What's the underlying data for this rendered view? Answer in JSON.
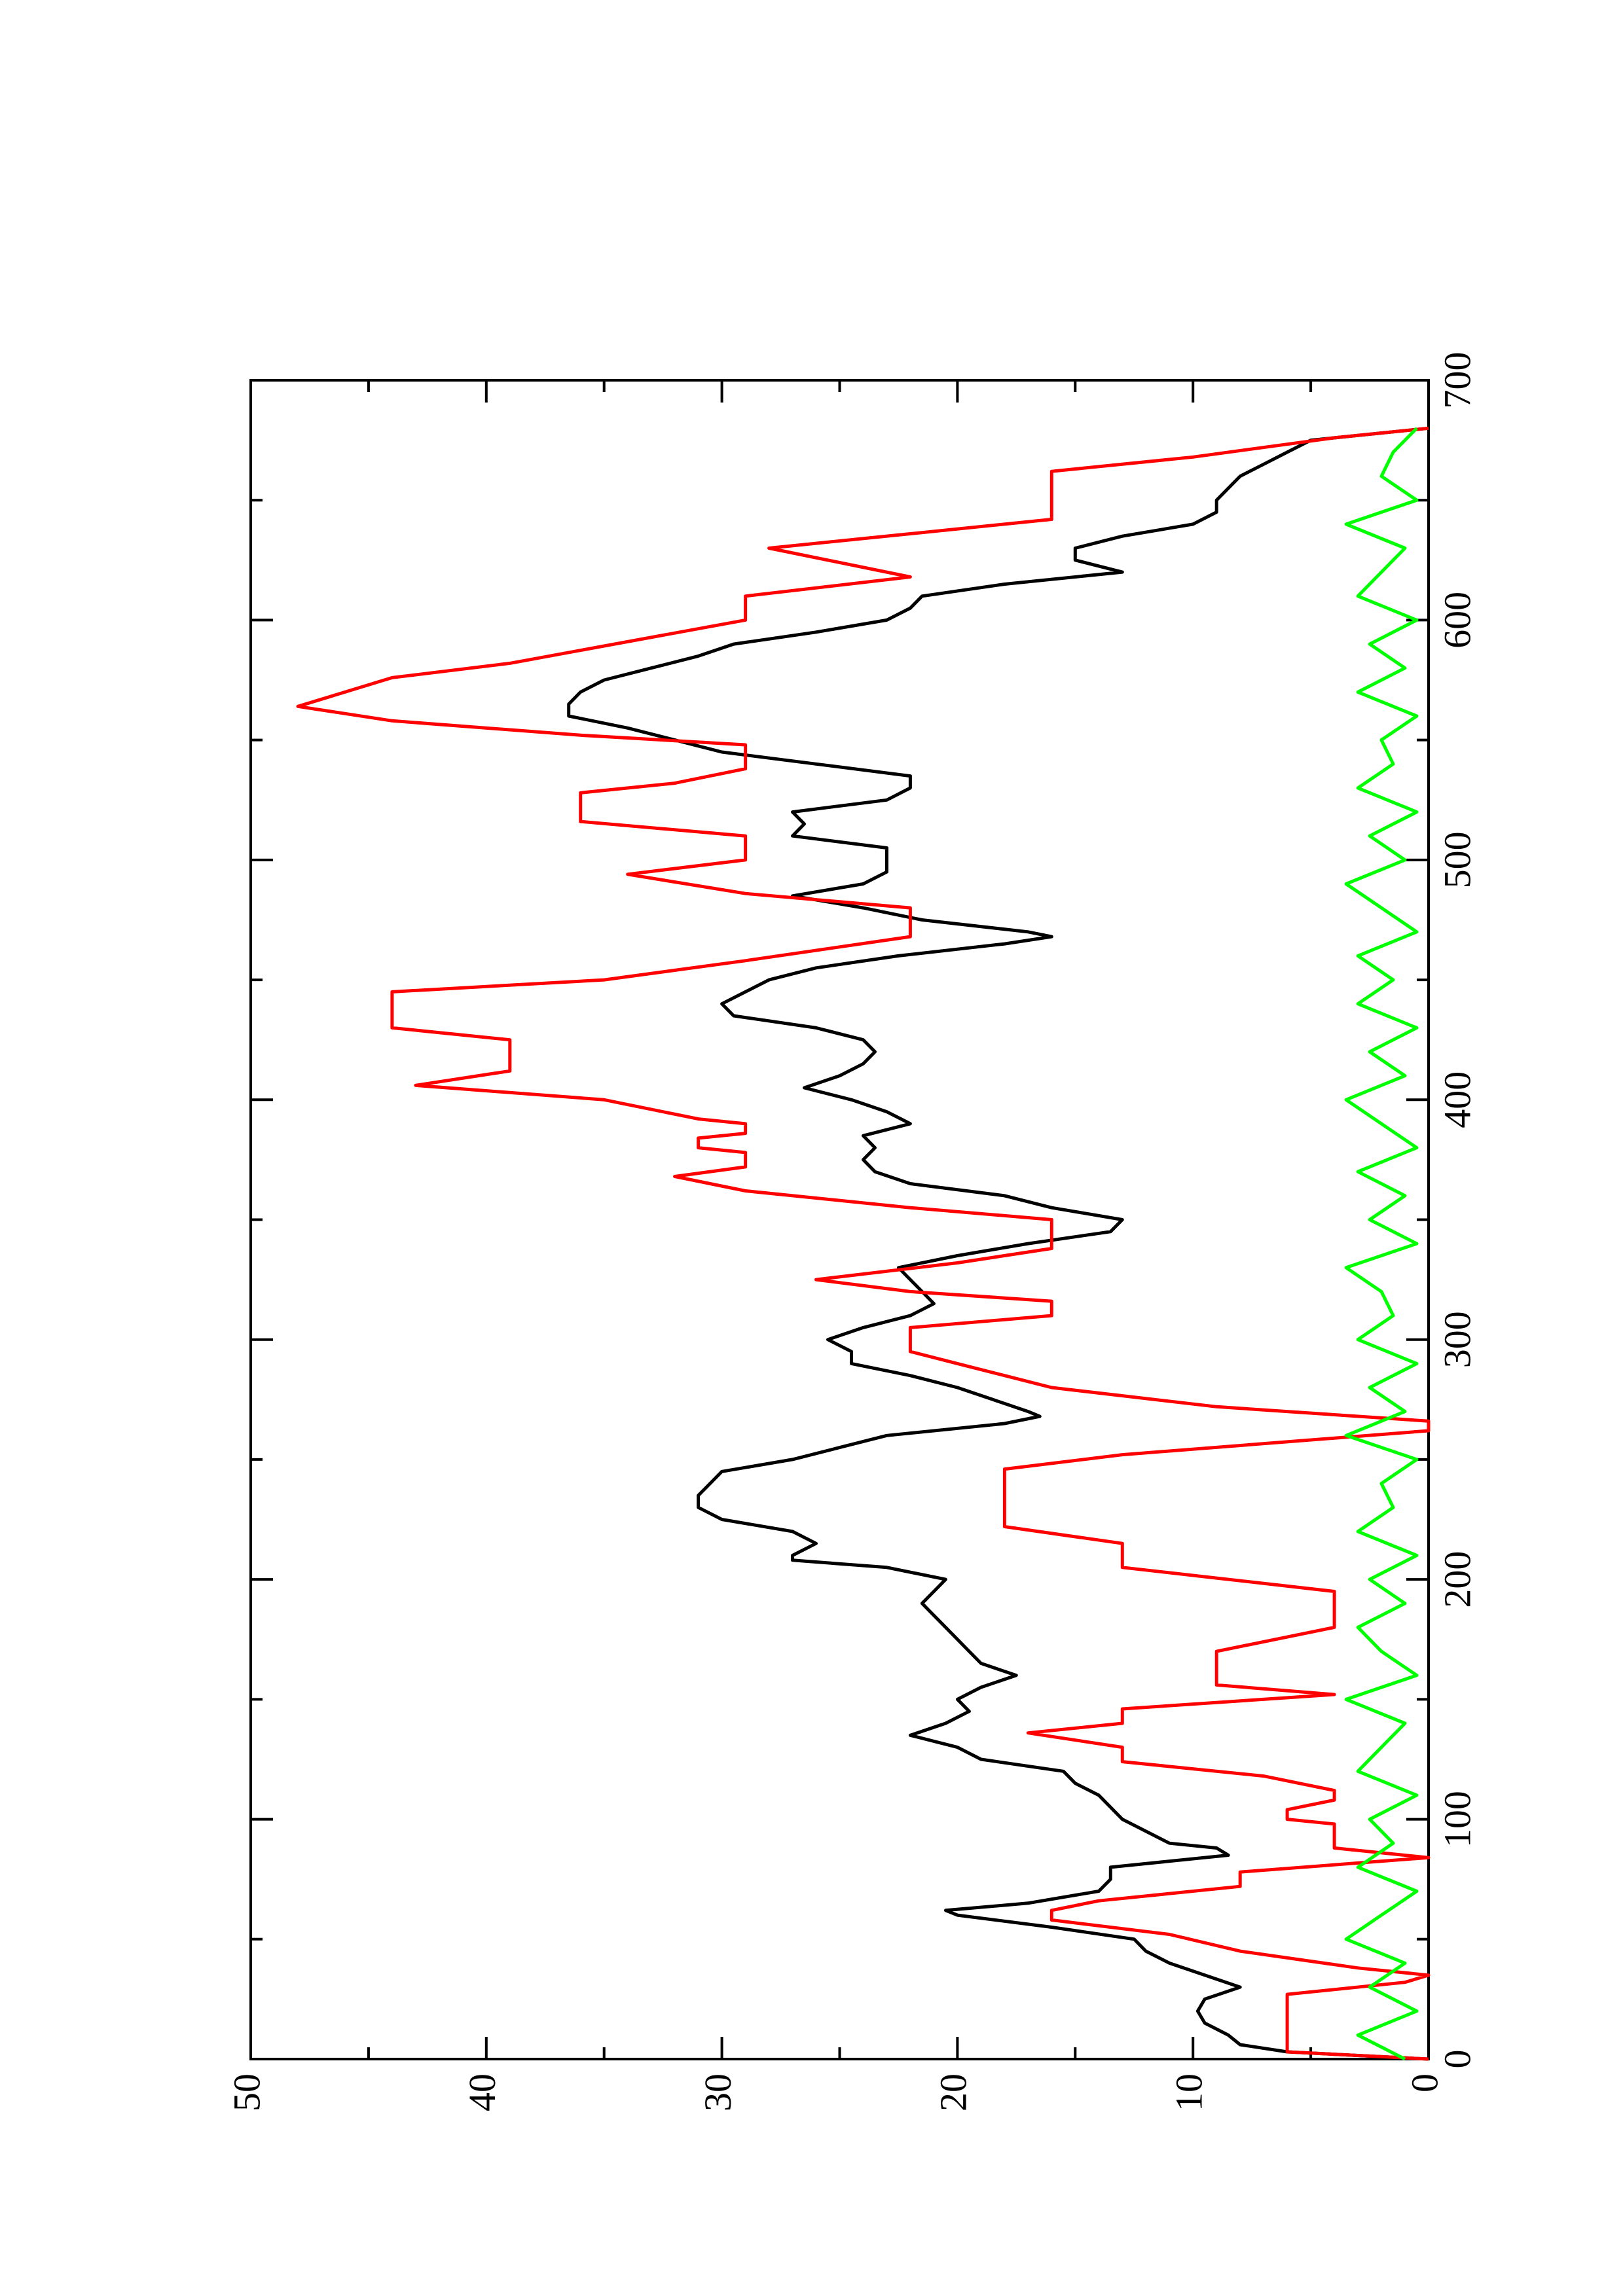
{
  "chart_data": {
    "type": "line",
    "xlim": [
      0,
      700
    ],
    "ylim": [
      0,
      50
    ],
    "xticks": [
      0,
      100,
      200,
      300,
      400,
      500,
      600,
      700
    ],
    "xminorticks": [
      50,
      150,
      250,
      350,
      450,
      550,
      650
    ],
    "yticks": [
      0,
      10,
      20,
      30,
      40,
      50
    ],
    "yminorticks": [
      5,
      15,
      25,
      35,
      45
    ],
    "rotated": true,
    "series": [
      {
        "color": "#000000",
        "x": [
          0,
          3,
          6,
          10,
          15,
          20,
          25,
          30,
          35,
          40,
          45,
          50,
          55,
          60,
          62,
          65,
          70,
          75,
          80,
          85,
          88,
          90,
          95,
          100,
          105,
          110,
          115,
          120,
          125,
          130,
          135,
          140,
          145,
          150,
          155,
          160,
          165,
          170,
          175,
          180,
          185,
          190,
          195,
          200,
          205,
          208,
          210,
          215,
          220,
          225,
          230,
          235,
          240,
          245,
          250,
          255,
          260,
          265,
          268,
          270,
          275,
          280,
          285,
          290,
          295,
          300,
          305,
          310,
          315,
          320,
          325,
          330,
          335,
          340,
          345,
          350,
          355,
          360,
          365,
          370,
          375,
          380,
          385,
          390,
          395,
          400,
          405,
          410,
          415,
          420,
          425,
          430,
          435,
          440,
          445,
          450,
          455,
          460,
          465,
          468,
          470,
          475,
          480,
          485,
          490,
          495,
          500,
          505,
          510,
          515,
          520,
          525,
          530,
          535,
          540,
          545,
          550,
          555,
          560,
          565,
          570,
          575,
          580,
          585,
          590,
          595,
          600,
          605,
          610,
          615,
          620,
          625,
          630,
          635,
          640,
          645,
          650,
          655,
          660,
          665,
          670,
          675,
          680
        ],
        "values": [
          0,
          6,
          8,
          8.5,
          9.5,
          9.8,
          9.5,
          8,
          9.5,
          11,
          12,
          12.5,
          16,
          20,
          20.5,
          17,
          14,
          13.5,
          13.5,
          8.5,
          9,
          11,
          12,
          13,
          13.5,
          14,
          15,
          15.5,
          19,
          20,
          22,
          20.5,
          19.5,
          20,
          19,
          17.5,
          19,
          19.5,
          20,
          20.5,
          21,
          21.5,
          21,
          20.5,
          23,
          27,
          27,
          26,
          27,
          30,
          31,
          31,
          30.5,
          30,
          27,
          25,
          23,
          18,
          16.5,
          17,
          18.5,
          20,
          22,
          24.5,
          24.5,
          25.5,
          24,
          22,
          21,
          21.5,
          22,
          22.5,
          20,
          17,
          13.5,
          13,
          16,
          18,
          22,
          23.5,
          24,
          23.5,
          24,
          22,
          23,
          24.5,
          26.5,
          25,
          24,
          23.5,
          24,
          26,
          29.5,
          30,
          29,
          28,
          26,
          22.5,
          18,
          16,
          17,
          21.5,
          24,
          27,
          24,
          23,
          23,
          23,
          27,
          26.5,
          27,
          23,
          22,
          22,
          26,
          30,
          32,
          34,
          36.5,
          36.5,
          36,
          35,
          33,
          31,
          29.5,
          26,
          23,
          22,
          21.5,
          18,
          13,
          15,
          15,
          13,
          10,
          9,
          9,
          8.5,
          8,
          7,
          6,
          5,
          0
        ]
      },
      {
        "color": "#ff0000",
        "x": [
          0,
          3,
          27,
          32,
          35,
          38,
          45,
          52,
          58,
          62,
          66,
          72,
          78,
          84,
          88,
          92,
          98,
          100,
          104,
          108,
          112,
          118,
          124,
          130,
          136,
          140,
          146,
          152,
          156,
          170,
          180,
          195,
          205,
          215,
          222,
          246,
          252,
          262,
          266,
          272,
          280,
          285,
          290,
          295,
          305,
          310,
          316,
          320,
          325,
          332,
          338,
          350,
          355,
          362,
          368,
          372,
          378,
          380,
          384,
          386,
          390,
          392,
          400,
          406,
          412,
          425,
          430,
          445,
          450,
          458,
          468,
          480,
          486,
          494,
          500,
          510,
          516,
          528,
          532,
          538,
          548,
          552,
          558,
          564,
          570,
          576,
          582,
          600,
          610,
          618,
          630,
          636,
          642,
          662,
          668,
          676,
          680
        ],
        "values": [
          0,
          6,
          6,
          1,
          0,
          3,
          8,
          11,
          16,
          16,
          14,
          8,
          8,
          0,
          4,
          4,
          4,
          6,
          6,
          4,
          4,
          7,
          13,
          13,
          17,
          13,
          13,
          4,
          9,
          9,
          4,
          4,
          13,
          13,
          18,
          18,
          13,
          0,
          0,
          9,
          16,
          18,
          20,
          22,
          22,
          16,
          16,
          22,
          26,
          20,
          16,
          16,
          22,
          29,
          32,
          29,
          29,
          31,
          31,
          29,
          29,
          31,
          35,
          43,
          39,
          39,
          44,
          44,
          35,
          29,
          22,
          22,
          29,
          34,
          29,
          29,
          36,
          36,
          32,
          29,
          29,
          36,
          44,
          48,
          46,
          44,
          39,
          29,
          29,
          22,
          28,
          22,
          16,
          16,
          10,
          4,
          0
        ]
      },
      {
        "color": "#00ff00",
        "x": [
          0,
          10,
          20,
          30,
          40,
          50,
          60,
          70,
          80,
          90,
          100,
          110,
          120,
          130,
          140,
          150,
          160,
          170,
          180,
          190,
          200,
          210,
          220,
          230,
          240,
          250,
          260,
          270,
          280,
          290,
          300,
          310,
          320,
          330,
          340,
          350,
          360,
          370,
          380,
          390,
          400,
          410,
          420,
          430,
          440,
          450,
          460,
          470,
          480,
          490,
          500,
          510,
          520,
          530,
          540,
          550,
          560,
          570,
          580,
          590,
          600,
          610,
          620,
          630,
          640,
          650,
          660,
          670,
          680
        ],
        "values": [
          1,
          3,
          0.5,
          2.5,
          1,
          3.5,
          2,
          0.5,
          3,
          1.5,
          2.5,
          0.5,
          3,
          2,
          1,
          3.5,
          0.5,
          2,
          3,
          1,
          2.5,
          0.5,
          3,
          1.5,
          2,
          0.5,
          3.5,
          1,
          2.5,
          0.5,
          3,
          1.5,
          2,
          3.5,
          0.5,
          2.5,
          1,
          3,
          0.5,
          2,
          3.5,
          1,
          2.5,
          0.5,
          3,
          1.5,
          3,
          0.5,
          2,
          3.5,
          1,
          2.5,
          0.5,
          3,
          1.5,
          2,
          0.5,
          3,
          1,
          2.5,
          0.5,
          3,
          2,
          1,
          3.5,
          0.5,
          2,
          1.5,
          0.5
        ]
      }
    ]
  }
}
